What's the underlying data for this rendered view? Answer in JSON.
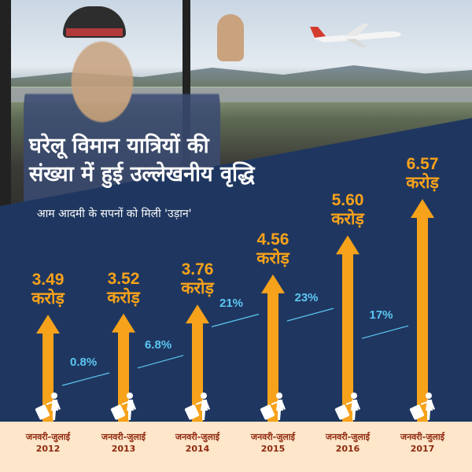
{
  "headline": {
    "line1": "घरेलू विमान यात्रियों की",
    "line2": "संख्या में हुई उल्लेखनीय वृद्धि"
  },
  "subtitle": "आम आदमी के सपनों को मिली 'उड़ान'",
  "colors": {
    "background": "#1f3760",
    "arrow": "#f7a21b",
    "growth": "#5cc6f2",
    "footer": "#fde6c9",
    "footer_text": "#8f2a10"
  },
  "icons": [
    "airplane-icon",
    "traveler-with-luggage-icon"
  ],
  "chart_data": {
    "type": "bar",
    "title": "घरेलू विमान यात्रियों की संख्या में हुई उल्लेखनीय वृद्धि",
    "categories": [
      {
        "period": "जनवरी-जुलाई",
        "year": "2012"
      },
      {
        "period": "जनवरी-जुलाई",
        "year": "2013"
      },
      {
        "period": "जनवरी-जुलाई",
        "year": "2014"
      },
      {
        "period": "जनवरी-जुलाई",
        "year": "2015"
      },
      {
        "period": "जनवरी-जुलाई",
        "year": "2016"
      },
      {
        "period": "जनवरी-जुलाई",
        "year": "2017"
      }
    ],
    "values": [
      3.49,
      3.52,
      3.76,
      4.56,
      5.6,
      6.57
    ],
    "value_labels": [
      "3.49",
      "3.52",
      "3.76",
      "4.56",
      "5.60",
      "6.57"
    ],
    "unit": "करोड़",
    "growth_labels": [
      "0.8%",
      "6.8%",
      "21%",
      "23%",
      "17%"
    ],
    "growth": [
      0.8,
      6.8,
      21,
      23,
      17
    ]
  }
}
